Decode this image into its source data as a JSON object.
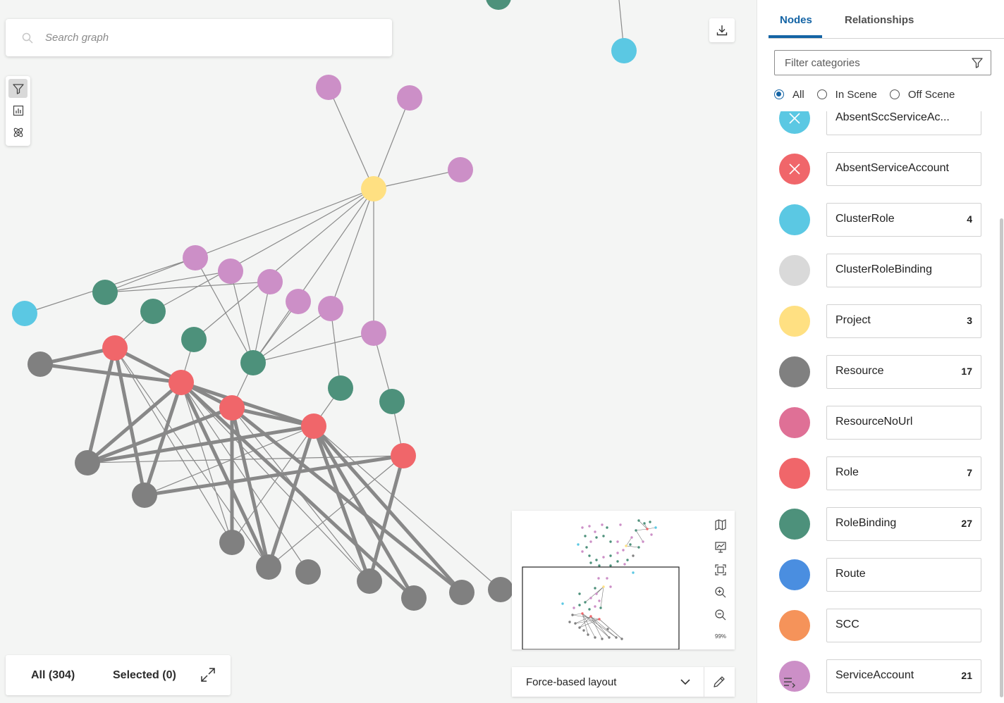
{
  "search": {
    "placeholder": "Search graph"
  },
  "toolbar": {
    "tools": [
      "filter-icon",
      "chart-icon",
      "atom-icon"
    ]
  },
  "counts": {
    "all_label": "All (304)",
    "selected_label": "Selected (0)"
  },
  "minimap": {
    "zoom": "99%"
  },
  "layout": {
    "selected": "Force-based layout"
  },
  "panel": {
    "tabs": [
      {
        "label": "Nodes"
      },
      {
        "label": "Relationships"
      }
    ],
    "filter_placeholder": "Filter categories",
    "radios": [
      {
        "label": "All",
        "checked": true
      },
      {
        "label": "In Scene",
        "checked": false
      },
      {
        "label": "Off Scene",
        "checked": false
      }
    ],
    "categories": [
      {
        "name": "AbsentSccServiceAc...",
        "count": "",
        "color": "#5bc8e3",
        "icon": "close-icon"
      },
      {
        "name": "AbsentServiceAccount",
        "count": "",
        "color": "#f0666a",
        "icon": "close-icon"
      },
      {
        "name": "ClusterRole",
        "count": "4",
        "color": "#5bc8e3",
        "icon": ""
      },
      {
        "name": "ClusterRoleBinding",
        "count": "",
        "color": "#d9d9d9",
        "icon": ""
      },
      {
        "name": "Project",
        "count": "3",
        "color": "#ffe082",
        "icon": ""
      },
      {
        "name": "Resource",
        "count": "17",
        "color": "#808080",
        "icon": ""
      },
      {
        "name": "ResourceNoUrl",
        "count": "",
        "color": "#df7096",
        "icon": ""
      },
      {
        "name": "Role",
        "count": "7",
        "color": "#f0666a",
        "icon": ""
      },
      {
        "name": "RoleBinding",
        "count": "27",
        "color": "#4d917b",
        "icon": ""
      },
      {
        "name": "Route",
        "count": "",
        "color": "#4a8ee0",
        "icon": ""
      },
      {
        "name": "SCC",
        "count": "",
        "color": "#f5935a",
        "icon": ""
      },
      {
        "name": "ServiceAccount",
        "count": "21",
        "color": "#cc8fc7",
        "icon": ""
      }
    ]
  },
  "colors": {
    "accent": "#1464a5",
    "project": "#ffe082",
    "service_account": "#cc8fc7",
    "role_binding": "#4d917b",
    "role": "#f0666a",
    "resource": "#808080",
    "cluster_role": "#5bc8e3"
  }
}
